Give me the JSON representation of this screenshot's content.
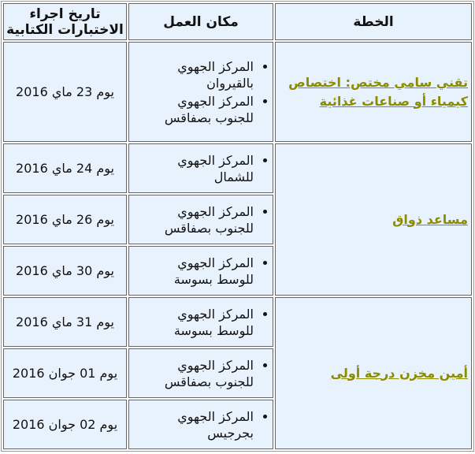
{
  "headers": {
    "plan": "الخطة",
    "place": "مكان العمل",
    "date": "تاريخ اجراء الاختبارات الكتابية"
  },
  "link_color": "#8c8c00",
  "plans": [
    "تقني سامي مختص: اختصاص كيمياء أو صناعات غذائية",
    "مساعد ذواق",
    "أمين مخزن درجة أولى"
  ],
  "rows": [
    {
      "places": [
        "المركز الجهوي بالقيروان",
        "المركز الجهوي للجنوب بصفاقس"
      ],
      "date": "يوم  23 ماي 2016"
    },
    {
      "places": [
        "المركز الجهوي للشمال"
      ],
      "date": "يوم 24 ماي 2016"
    },
    {
      "places": [
        "المركز الجهوي للجنوب بصفاقس"
      ],
      "date": "يوم 26 ماي 2016"
    },
    {
      "places": [
        "المركز الجهوي للوسط بسوسة"
      ],
      "date": "يوم 30 ماي 2016"
    },
    {
      "places": [
        "المركز الجهوي للوسط بسوسة"
      ],
      "date": "يوم 31 ماي 2016"
    },
    {
      "places": [
        "المركز الجهوي للجنوب بصفاقس"
      ],
      "date": "يوم 01 جوان 2016"
    },
    {
      "places": [
        "المركز الجهوي بجرجيس"
      ],
      "date": "يوم 02 جوان 2016"
    }
  ]
}
